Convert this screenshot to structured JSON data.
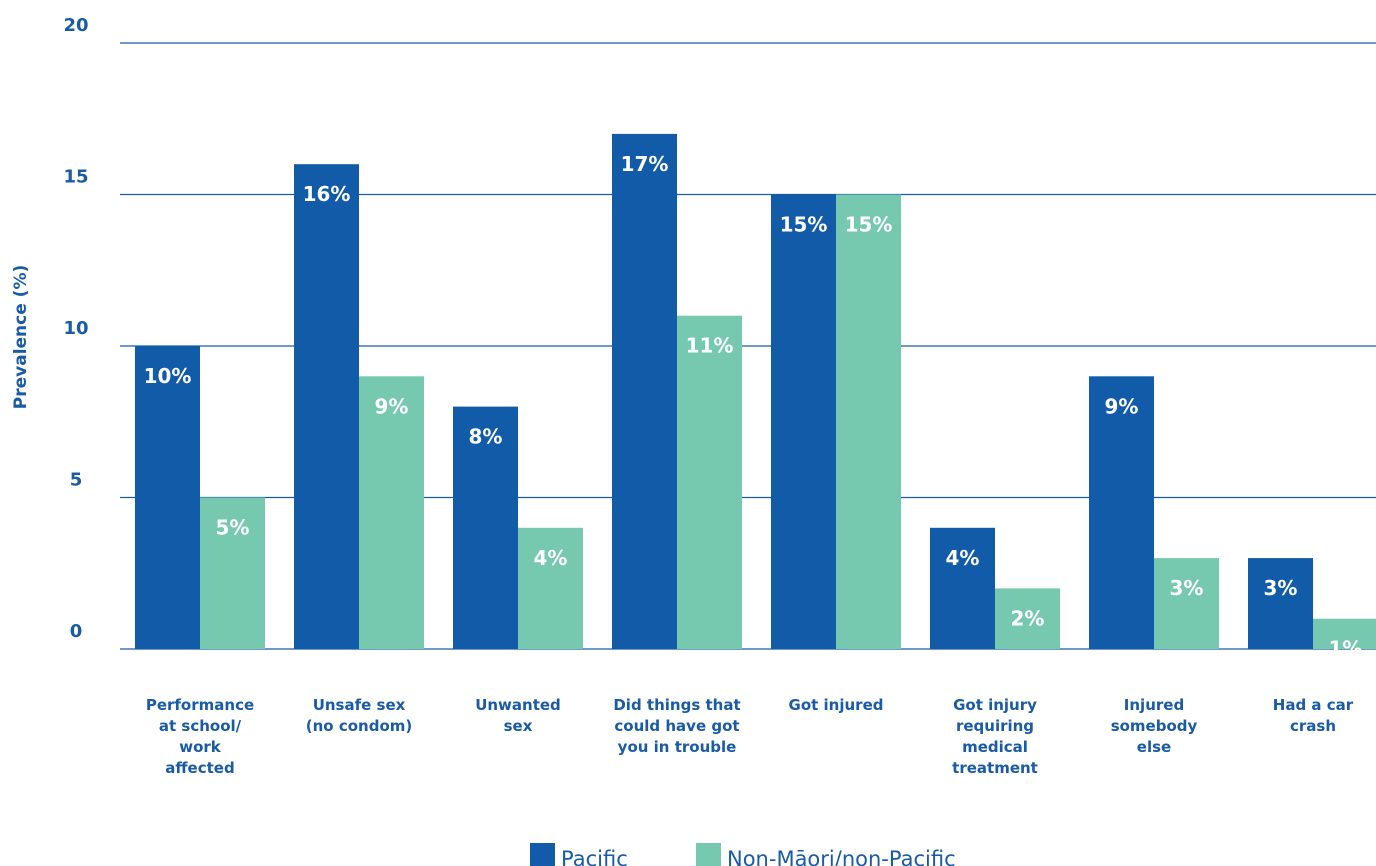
{
  "chart_data": {
    "type": "bar",
    "ylabel": "Prevalence (%)",
    "ylim": [
      0,
      20
    ],
    "yticks": [
      0,
      5,
      10,
      15,
      20
    ],
    "grid": true,
    "legend_position": "bottom",
    "value_suffix": "%",
    "categories": [
      [
        "Performance",
        "at school/",
        "work",
        "affected"
      ],
      [
        "Unsafe sex",
        "(no condom)"
      ],
      [
        "Unwanted",
        "sex"
      ],
      [
        "Did things that",
        "could have got",
        "you in trouble"
      ],
      [
        "Got injured"
      ],
      [
        "Got injury",
        "requiring",
        "medical",
        "treatment"
      ],
      [
        "Injured",
        "somebody",
        "else"
      ],
      [
        "Had a car",
        "crash"
      ]
    ],
    "series": [
      {
        "name": "Pacific",
        "color": "#115BA8",
        "values": [
          10,
          16,
          8,
          17,
          15,
          4,
          9,
          3
        ]
      },
      {
        "name": "Non-Māori/non-Pacific",
        "color": "#76C9AF",
        "values": [
          5,
          9,
          4,
          11,
          15,
          2,
          3,
          1
        ]
      }
    ]
  }
}
